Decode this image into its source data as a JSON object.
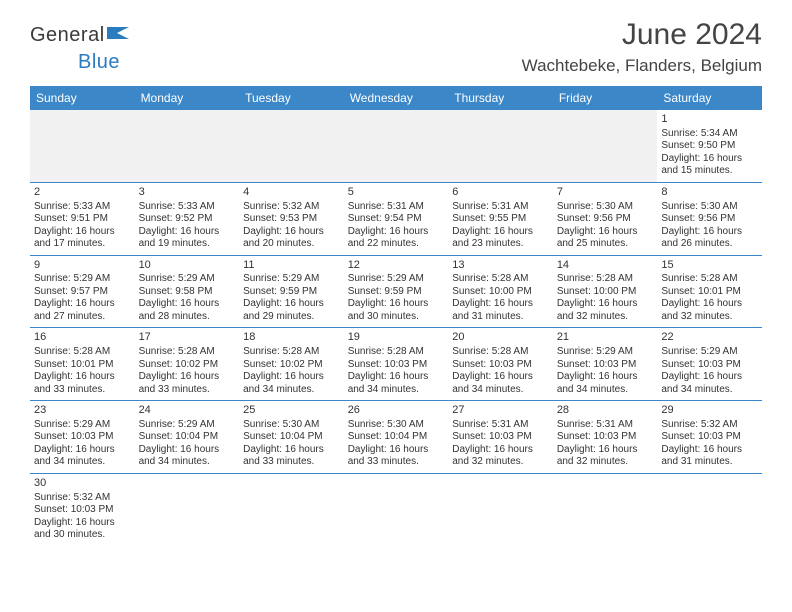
{
  "logo": {
    "text1": "General",
    "text2": "Blue"
  },
  "title": "June 2024",
  "location": "Wachtebeke, Flanders, Belgium",
  "header_bg": "#3b87c8",
  "header_fg": "#ffffff",
  "border_color": "#3b87c8",
  "text_color": "#333333",
  "days": [
    "Sunday",
    "Monday",
    "Tuesday",
    "Wednesday",
    "Thursday",
    "Friday",
    "Saturday"
  ],
  "weeks": [
    [
      null,
      null,
      null,
      null,
      null,
      null,
      {
        "n": "1",
        "sr": "5:34 AM",
        "ss": "9:50 PM",
        "dl": "16 hours and 15 minutes."
      }
    ],
    [
      {
        "n": "2",
        "sr": "5:33 AM",
        "ss": "9:51 PM",
        "dl": "16 hours and 17 minutes."
      },
      {
        "n": "3",
        "sr": "5:33 AM",
        "ss": "9:52 PM",
        "dl": "16 hours and 19 minutes."
      },
      {
        "n": "4",
        "sr": "5:32 AM",
        "ss": "9:53 PM",
        "dl": "16 hours and 20 minutes."
      },
      {
        "n": "5",
        "sr": "5:31 AM",
        "ss": "9:54 PM",
        "dl": "16 hours and 22 minutes."
      },
      {
        "n": "6",
        "sr": "5:31 AM",
        "ss": "9:55 PM",
        "dl": "16 hours and 23 minutes."
      },
      {
        "n": "7",
        "sr": "5:30 AM",
        "ss": "9:56 PM",
        "dl": "16 hours and 25 minutes."
      },
      {
        "n": "8",
        "sr": "5:30 AM",
        "ss": "9:56 PM",
        "dl": "16 hours and 26 minutes."
      }
    ],
    [
      {
        "n": "9",
        "sr": "5:29 AM",
        "ss": "9:57 PM",
        "dl": "16 hours and 27 minutes."
      },
      {
        "n": "10",
        "sr": "5:29 AM",
        "ss": "9:58 PM",
        "dl": "16 hours and 28 minutes."
      },
      {
        "n": "11",
        "sr": "5:29 AM",
        "ss": "9:59 PM",
        "dl": "16 hours and 29 minutes."
      },
      {
        "n": "12",
        "sr": "5:29 AM",
        "ss": "9:59 PM",
        "dl": "16 hours and 30 minutes."
      },
      {
        "n": "13",
        "sr": "5:28 AM",
        "ss": "10:00 PM",
        "dl": "16 hours and 31 minutes."
      },
      {
        "n": "14",
        "sr": "5:28 AM",
        "ss": "10:00 PM",
        "dl": "16 hours and 32 minutes."
      },
      {
        "n": "15",
        "sr": "5:28 AM",
        "ss": "10:01 PM",
        "dl": "16 hours and 32 minutes."
      }
    ],
    [
      {
        "n": "16",
        "sr": "5:28 AM",
        "ss": "10:01 PM",
        "dl": "16 hours and 33 minutes."
      },
      {
        "n": "17",
        "sr": "5:28 AM",
        "ss": "10:02 PM",
        "dl": "16 hours and 33 minutes."
      },
      {
        "n": "18",
        "sr": "5:28 AM",
        "ss": "10:02 PM",
        "dl": "16 hours and 34 minutes."
      },
      {
        "n": "19",
        "sr": "5:28 AM",
        "ss": "10:03 PM",
        "dl": "16 hours and 34 minutes."
      },
      {
        "n": "20",
        "sr": "5:28 AM",
        "ss": "10:03 PM",
        "dl": "16 hours and 34 minutes."
      },
      {
        "n": "21",
        "sr": "5:29 AM",
        "ss": "10:03 PM",
        "dl": "16 hours and 34 minutes."
      },
      {
        "n": "22",
        "sr": "5:29 AM",
        "ss": "10:03 PM",
        "dl": "16 hours and 34 minutes."
      }
    ],
    [
      {
        "n": "23",
        "sr": "5:29 AM",
        "ss": "10:03 PM",
        "dl": "16 hours and 34 minutes."
      },
      {
        "n": "24",
        "sr": "5:29 AM",
        "ss": "10:04 PM",
        "dl": "16 hours and 34 minutes."
      },
      {
        "n": "25",
        "sr": "5:30 AM",
        "ss": "10:04 PM",
        "dl": "16 hours and 33 minutes."
      },
      {
        "n": "26",
        "sr": "5:30 AM",
        "ss": "10:04 PM",
        "dl": "16 hours and 33 minutes."
      },
      {
        "n": "27",
        "sr": "5:31 AM",
        "ss": "10:03 PM",
        "dl": "16 hours and 32 minutes."
      },
      {
        "n": "28",
        "sr": "5:31 AM",
        "ss": "10:03 PM",
        "dl": "16 hours and 32 minutes."
      },
      {
        "n": "29",
        "sr": "5:32 AM",
        "ss": "10:03 PM",
        "dl": "16 hours and 31 minutes."
      }
    ],
    [
      {
        "n": "30",
        "sr": "5:32 AM",
        "ss": "10:03 PM",
        "dl": "16 hours and 30 minutes."
      },
      null,
      null,
      null,
      null,
      null,
      null
    ]
  ],
  "labels": {
    "sunrise": "Sunrise: ",
    "sunset": "Sunset: ",
    "daylight": "Daylight: "
  }
}
